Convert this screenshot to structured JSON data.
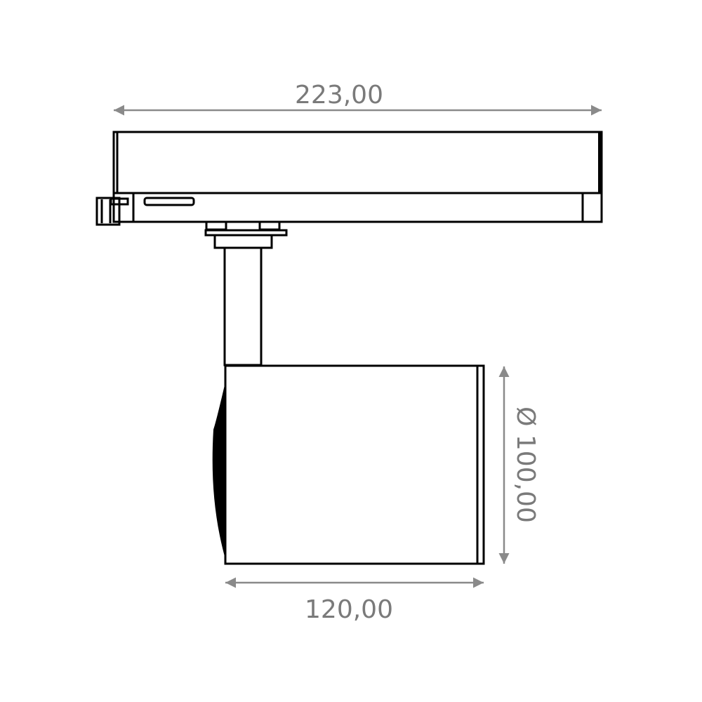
{
  "dimensions": {
    "overall_width": "223,00",
    "head_length": "120,00",
    "head_diameter": "Ø 100,00"
  },
  "colors": {
    "outline": "#000000",
    "dimension": "#8a8a8a"
  }
}
